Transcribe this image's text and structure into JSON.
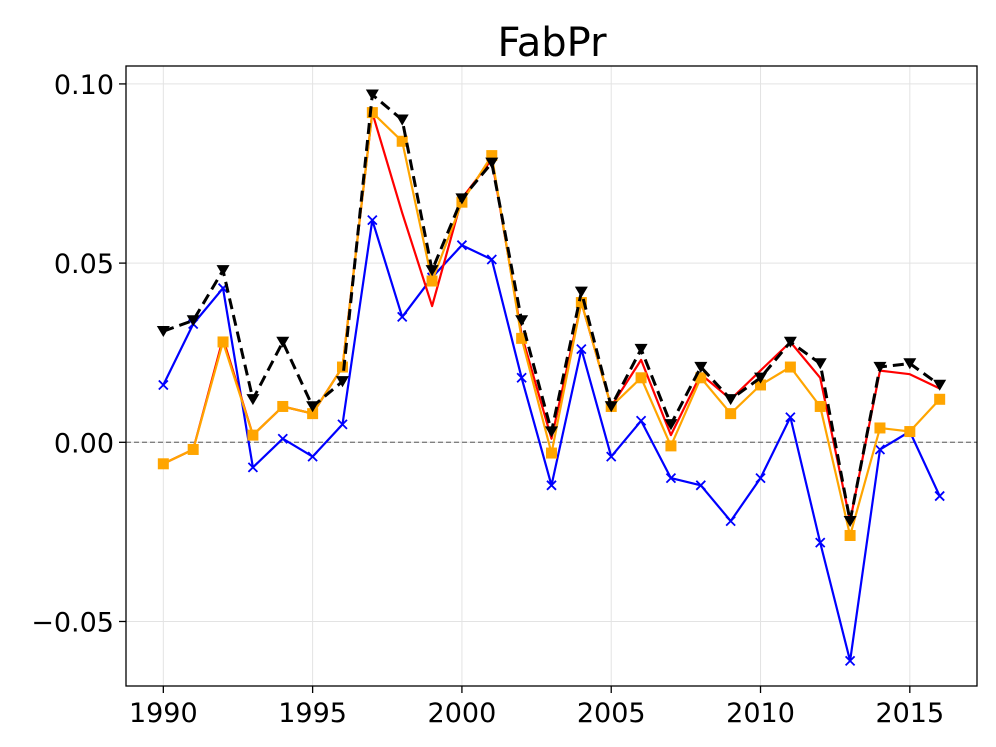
{
  "chart_data": {
    "type": "line",
    "title": "FabPr",
    "xlabel": "",
    "ylabel": "",
    "xlim": [
      1988.75,
      2017.25
    ],
    "ylim": [
      -0.068,
      0.105
    ],
    "grid": true,
    "reference_line": {
      "y": 0.0,
      "style": "dashed",
      "color": "#808080"
    },
    "x_ticks": [
      1990,
      1995,
      2000,
      2005,
      2010,
      2015
    ],
    "x_tick_labels": [
      "1990",
      "1995",
      "2000",
      "2005",
      "2010",
      "2015"
    ],
    "y_ticks": [
      -0.05,
      0.0,
      0.05,
      0.1
    ],
    "y_tick_labels": [
      "−0.05",
      "0.00",
      "0.05",
      "0.10"
    ],
    "x": [
      1990,
      1991,
      1992,
      1993,
      1994,
      1995,
      1996,
      1997,
      1998,
      1999,
      2000,
      2001,
      2002,
      2003,
      2004,
      2005,
      2006,
      2007,
      2008,
      2009,
      2010,
      2011,
      2012,
      2013,
      2014,
      2015,
      2016
    ],
    "series": [
      {
        "color": "#0000ff",
        "marker": "x",
        "dashed": false,
        "values": [
          0.016,
          0.033,
          0.043,
          -0.007,
          0.001,
          -0.004,
          0.005,
          0.062,
          0.035,
          0.046,
          0.055,
          0.051,
          0.018,
          -0.012,
          0.026,
          -0.004,
          0.006,
          -0.01,
          -0.012,
          -0.022,
          -0.01,
          0.007,
          -0.028,
          -0.061,
          -0.002,
          0.003,
          -0.015
        ]
      },
      {
        "color": "#ff0000",
        "marker": "none",
        "dashed": false,
        "values": [
          -0.006,
          -0.002,
          0.029,
          0.002,
          0.01,
          0.008,
          0.021,
          0.092,
          0.064,
          0.038,
          0.068,
          0.079,
          0.03,
          0.001,
          0.039,
          0.01,
          0.023,
          0.002,
          0.019,
          0.012,
          0.02,
          0.028,
          0.018,
          -0.022,
          0.02,
          0.019,
          0.015
        ]
      },
      {
        "color": "#ffa500",
        "marker": "square",
        "dashed": false,
        "values": [
          -0.006,
          -0.002,
          0.028,
          0.002,
          0.01,
          0.008,
          0.021,
          0.092,
          0.084,
          0.045,
          0.067,
          0.08,
          0.029,
          -0.003,
          0.039,
          0.01,
          0.018,
          -0.001,
          0.018,
          0.008,
          0.016,
          0.021,
          0.01,
          -0.026,
          0.004,
          0.003,
          0.012
        ]
      },
      {
        "color": "#000000",
        "marker": "triangle-down",
        "dashed": true,
        "values": [
          0.031,
          0.034,
          0.048,
          0.012,
          0.028,
          0.01,
          0.017,
          0.097,
          0.09,
          0.048,
          0.068,
          0.078,
          0.034,
          0.003,
          0.042,
          0.01,
          0.026,
          0.005,
          0.021,
          0.012,
          0.018,
          0.028,
          0.022,
          -0.022,
          0.021,
          0.022,
          0.016
        ]
      }
    ]
  }
}
